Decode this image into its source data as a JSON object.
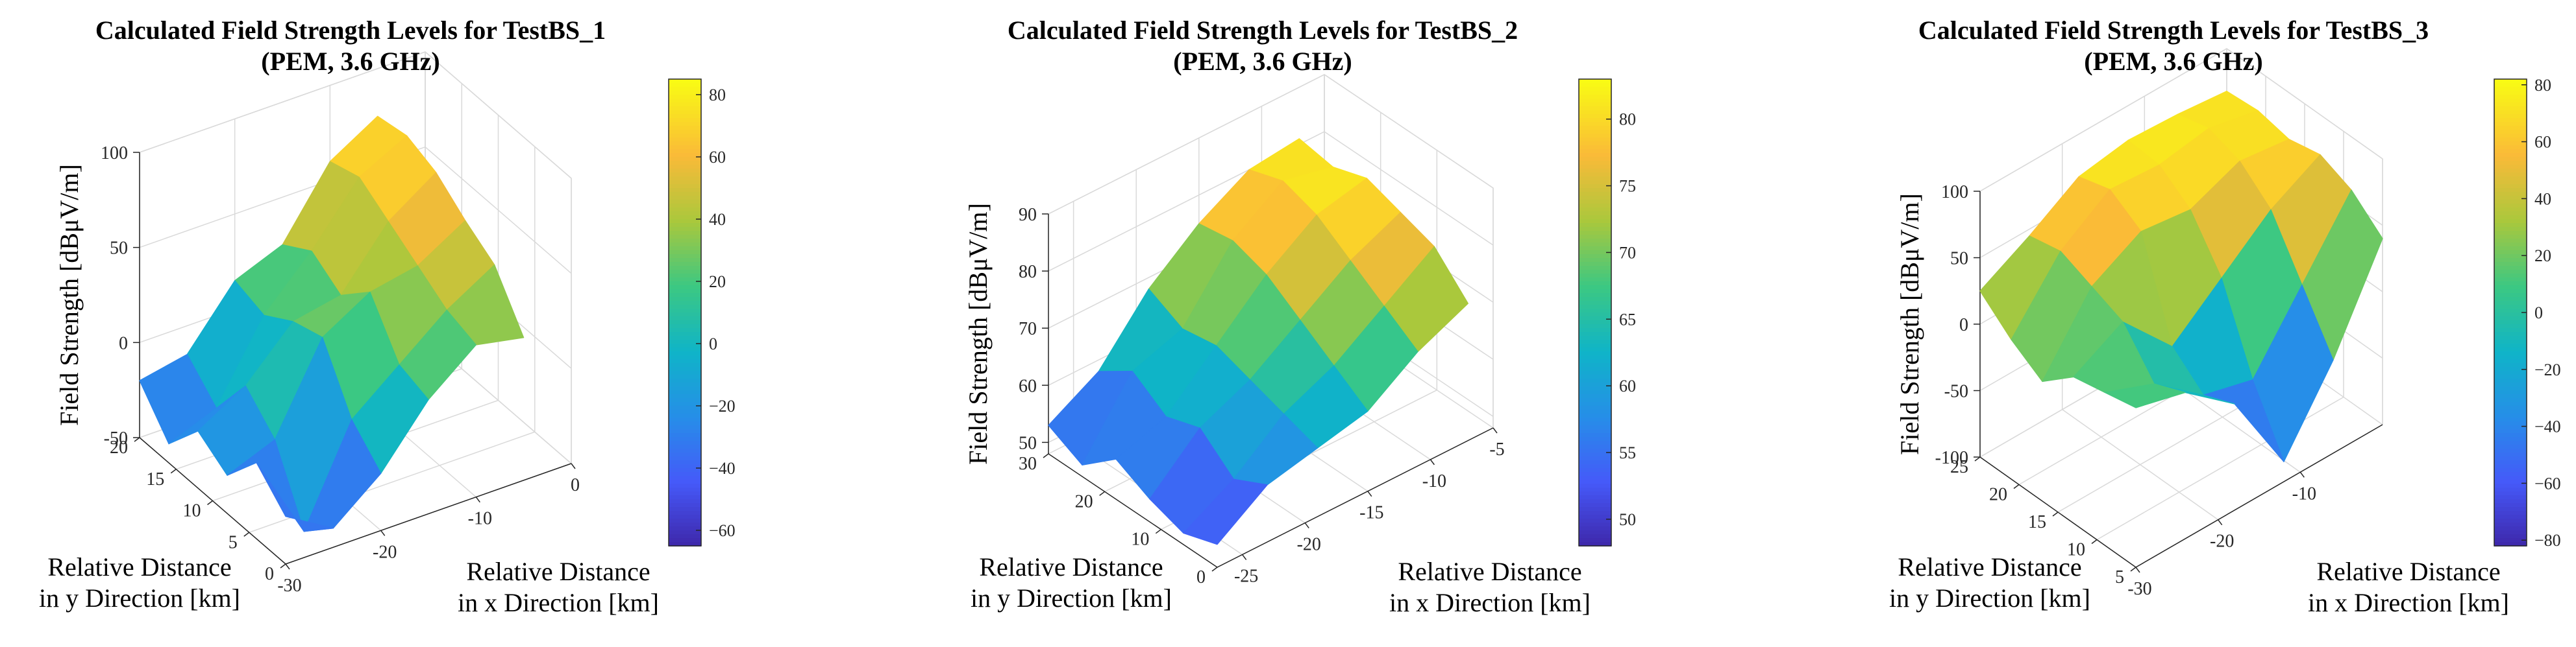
{
  "chart_data": [
    {
      "type": "surface",
      "title": [
        "Calculated Field Strength Levels for TestBS_1",
        "(PEM, 3.6 GHz)"
      ],
      "zlabel": "Field Strength [dBμV/m]",
      "xlabel": [
        "Relative Distance",
        "in x Direction [km]"
      ],
      "ylabel": [
        "Relative Distance",
        "in y Direction [km]"
      ],
      "xlim": [
        -30,
        0
      ],
      "ylim": [
        0,
        20
      ],
      "zlim": [
        -50,
        100
      ],
      "xticks": [
        "-30",
        "-20",
        "-10",
        "0"
      ],
      "yticks": [
        "0",
        "5",
        "10",
        "15",
        "20"
      ],
      "zticks": [
        "-50",
        "0",
        "50",
        "100"
      ],
      "colorbar": {
        "min": -65,
        "max": 85,
        "ticks": [
          "80",
          "60",
          "40",
          "20",
          "0",
          "-20",
          "-40",
          "-60"
        ],
        "tick_values": [
          80,
          60,
          40,
          20,
          0,
          -20,
          -40,
          -60
        ]
      },
      "x": [
        -30,
        -25,
        -20,
        -15,
        -10,
        -5
      ],
      "y": [
        0,
        4,
        8,
        12,
        16,
        20
      ],
      "z": [
        [
          -25,
          -40,
          -20,
          10,
          30,
          25
        ],
        [
          -10,
          -55,
          -5,
          15,
          35,
          50
        ],
        [
          -30,
          -20,
          25,
          40,
          45,
          60
        ],
        [
          -20,
          -5,
          20,
          25,
          55,
          72
        ],
        [
          -40,
          -30,
          10,
          35,
          65,
          78
        ],
        [
          -20,
          -15,
          15,
          25,
          60,
          75
        ]
      ]
    },
    {
      "type": "surface",
      "title": [
        "Calculated Field Strength Levels for TestBS_2",
        "(PEM, 3.6 GHz)"
      ],
      "zlabel": "Field Strength [dBμV/m]",
      "xlabel": [
        "Relative Distance",
        "in x Direction [km]"
      ],
      "ylabel": [
        "Relative Distance",
        "in y Direction [km]"
      ],
      "xlim": [
        -27,
        -5
      ],
      "ylim": [
        0,
        30
      ],
      "zlim": [
        48,
        90
      ],
      "xticks": [
        "-25",
        "-20",
        "-15",
        "-10",
        "-5"
      ],
      "yticks": [
        "0",
        "10",
        "20",
        "30"
      ],
      "zticks": [
        "50",
        "60",
        "70",
        "80",
        "90"
      ],
      "colorbar": {
        "min": 48,
        "max": 83,
        "ticks": [
          "80",
          "75",
          "70",
          "65",
          "60",
          "55",
          "50"
        ],
        "tick_values": [
          80,
          75,
          70,
          65,
          60,
          55,
          50
        ]
      },
      "x": [
        -27,
        -23,
        -19,
        -15,
        -11,
        -7
      ],
      "y": [
        0,
        6,
        12,
        18,
        24,
        30
      ],
      "z": [
        [
          52,
          58,
          60,
          62,
          68,
          72
        ],
        [
          50,
          55,
          62,
          66,
          72,
          78
        ],
        [
          52,
          60,
          64,
          70,
          76,
          80
        ],
        [
          55,
          58,
          66,
          74,
          80,
          82
        ],
        [
          50,
          62,
          65,
          76,
          82,
          80
        ],
        [
          53,
          58,
          68,
          75,
          80,
          81
        ]
      ]
    },
    {
      "type": "surface",
      "title": [
        "Calculated Field Strength Levels for TestBS_3",
        "(PEM, 3.6 GHz)"
      ],
      "zlabel": "Field Strength [dBμV/m]",
      "xlabel": [
        "Relative Distance",
        "in x Direction [km]"
      ],
      "ylabel": [
        "Relative Distance",
        "in y Direction [km]"
      ],
      "xlim": [
        -30,
        0
      ],
      "ylim": [
        5,
        25
      ],
      "zlim": [
        -100,
        100
      ],
      "xticks": [
        "-30",
        "-20",
        "-10"
      ],
      "yticks": [
        "5",
        "10",
        "15",
        "20",
        "25"
      ],
      "zticks": [
        "-100",
        "-50",
        "0",
        "50",
        "100"
      ],
      "colorbar": {
        "min": -82,
        "max": 82,
        "ticks": [
          "80",
          "60",
          "40",
          "20",
          "0",
          "-20",
          "-40",
          "-60",
          "-80"
        ],
        "tick_values": [
          80,
          60,
          40,
          20,
          0,
          -20,
          -40,
          -60,
          -80
        ]
      },
      "x": [
        -30,
        -24,
        -18,
        -12,
        -6,
        0
      ],
      "y": [
        5,
        9,
        13,
        17,
        21,
        25
      ],
      "z": [
        [
          20,
          10,
          -20,
          -85,
          -30,
          40
        ],
        [
          15,
          0,
          -30,
          -40,
          10,
          60
        ],
        [
          10,
          30,
          -10,
          20,
          50,
          70
        ],
        [
          -10,
          40,
          60,
          55,
          70,
          65
        ],
        [
          5,
          50,
          75,
          72,
          78,
          70
        ],
        [
          25,
          45,
          68,
          74,
          72,
          68
        ]
      ]
    }
  ]
}
